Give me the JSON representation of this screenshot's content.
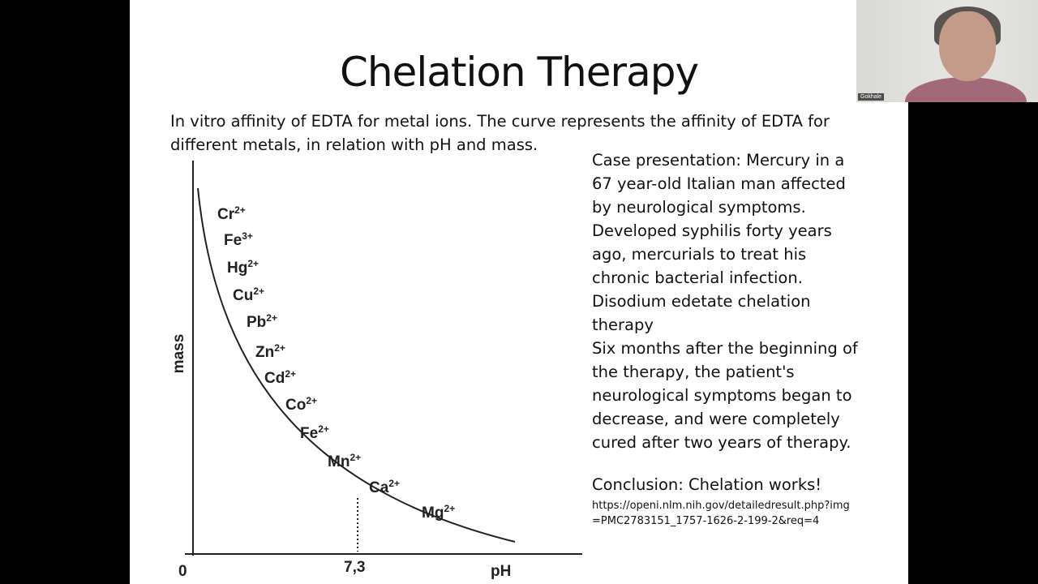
{
  "slide": {
    "title": "Chelation Therapy",
    "intro": "In vitro affinity of EDTA for metal ions. The curve represents the affinity of EDTA for different metals, in relation with pH and mass.",
    "case_lines": [
      "Case presentation: Mercury in a",
      "67 year-old Italian man affected",
      "by neurological symptoms.",
      "Developed syphilis forty years",
      "ago, mercurials to treat his",
      "chronic bacterial infection.",
      "Disodium edetate chelation",
      "therapy",
      "Six months after the beginning of",
      "the therapy, the patient's",
      "neurological symptoms began to",
      "decrease, and were completely",
      "cured after two years of therapy."
    ],
    "conclusion": "Conclusion: Chelation works!",
    "url_line1": "https://openi.nlm.nih.gov/detailedresult.php?img",
    "url_line2": "=PMC2783151_1757-1626-2-199-2&req=4"
  },
  "diagram": {
    "y_label": "mass",
    "x_label": "pH",
    "origin": "0",
    "x_mark": "7,3",
    "ions": [
      {
        "el": "Cr",
        "charge": "2+"
      },
      {
        "el": "Fe",
        "charge": "3+"
      },
      {
        "el": "Hg",
        "charge": "2+"
      },
      {
        "el": "Cu",
        "charge": "2+"
      },
      {
        "el": "Pb",
        "charge": "2+"
      },
      {
        "el": "Zn",
        "charge": "2+"
      },
      {
        "el": "Cd",
        "charge": "2+"
      },
      {
        "el": "Co",
        "charge": "2+"
      },
      {
        "el": "Fe",
        "charge": "2+"
      },
      {
        "el": "Mn",
        "charge": "2+"
      },
      {
        "el": "Ca",
        "charge": "2+"
      },
      {
        "el": "Mg",
        "charge": "2+"
      }
    ]
  },
  "webcam": {
    "participant_name": "Gokhale"
  }
}
